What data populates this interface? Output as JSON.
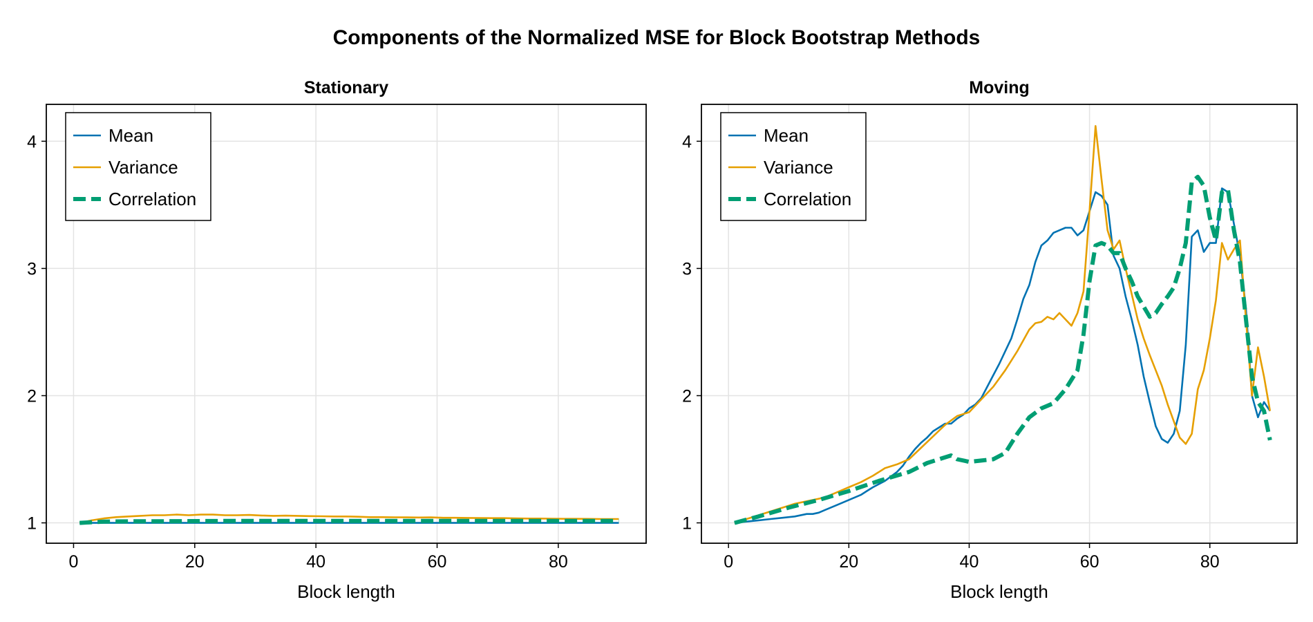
{
  "figure_title": "Components of the Normalized MSE for Block Bootstrap Methods",
  "colors": {
    "mean": "#0072b2",
    "variance": "#e69f00",
    "correlation": "#009e73",
    "grid": "#e3e3e3",
    "axis": "#000000"
  },
  "chart_data": [
    {
      "type": "line",
      "title": "Stationary",
      "xlabel": "Block length",
      "ylabel": "",
      "xlim": [
        -4.5,
        94.5
      ],
      "ylim": [
        0.84,
        4.29
      ],
      "xticks": [
        0,
        20,
        40,
        60,
        80
      ],
      "xtick_labels": [
        "0",
        "20",
        "40",
        "60",
        "80"
      ],
      "yticks": [
        1,
        2,
        3,
        4
      ],
      "ytick_labels": [
        "1",
        "2",
        "3",
        "4"
      ],
      "grid": true,
      "legend_position": "top-left",
      "legend": [
        "Mean",
        "Variance",
        "Correlation"
      ],
      "series": [
        {
          "name": "Mean",
          "x": [
            1,
            90
          ],
          "y": [
            1.0,
            1.0
          ]
        },
        {
          "name": "Variance",
          "x": [
            1,
            3,
            5,
            7,
            9,
            11,
            13,
            15,
            17,
            19,
            21,
            23,
            25,
            27,
            29,
            31,
            33,
            35,
            37,
            39,
            41,
            43,
            45,
            47,
            49,
            51,
            53,
            55,
            57,
            59,
            61,
            63,
            65,
            67,
            69,
            71,
            73,
            75,
            77,
            79,
            81,
            83,
            85,
            87,
            89,
            90
          ],
          "y": [
            1.0,
            1.02,
            1.035,
            1.045,
            1.05,
            1.055,
            1.06,
            1.06,
            1.065,
            1.06,
            1.065,
            1.065,
            1.06,
            1.06,
            1.062,
            1.058,
            1.055,
            1.057,
            1.055,
            1.053,
            1.052,
            1.05,
            1.05,
            1.048,
            1.045,
            1.045,
            1.044,
            1.043,
            1.042,
            1.043,
            1.04,
            1.04,
            1.039,
            1.038,
            1.037,
            1.037,
            1.035,
            1.034,
            1.034,
            1.033,
            1.032,
            1.032,
            1.031,
            1.03,
            1.03,
            1.03
          ]
        },
        {
          "name": "Correlation",
          "x": [
            1,
            5,
            10,
            15,
            20,
            25,
            30,
            35,
            40,
            45,
            50,
            55,
            60,
            65,
            70,
            75,
            80,
            85,
            90
          ],
          "y": [
            1.0,
            1.01,
            1.012,
            1.013,
            1.014,
            1.015,
            1.015,
            1.015,
            1.015,
            1.015,
            1.015,
            1.015,
            1.015,
            1.015,
            1.015,
            1.015,
            1.015,
            1.015,
            1.015
          ]
        }
      ]
    },
    {
      "type": "line",
      "title": "Moving",
      "xlabel": "Block length",
      "ylabel": "",
      "xlim": [
        -4.5,
        94.5
      ],
      "ylim": [
        0.84,
        4.29
      ],
      "xticks": [
        0,
        20,
        40,
        60,
        80
      ],
      "xtick_labels": [
        "0",
        "20",
        "40",
        "60",
        "80"
      ],
      "yticks": [
        1,
        2,
        3,
        4
      ],
      "ytick_labels": [
        "1",
        "2",
        "3",
        "4"
      ],
      "grid": true,
      "legend_position": "top-left",
      "legend": [
        "Mean",
        "Variance",
        "Correlation"
      ],
      "series": [
        {
          "name": "Mean",
          "x": [
            1,
            3,
            5,
            7,
            9,
            11,
            13,
            14,
            15,
            16,
            18,
            20,
            22,
            23,
            24,
            26,
            28,
            29,
            30,
            31,
            32,
            33,
            34,
            35,
            36,
            37,
            38,
            39,
            40,
            41,
            42,
            43,
            44,
            45,
            46,
            47,
            48,
            49,
            50,
            51,
            52,
            53,
            54,
            55,
            56,
            57,
            58,
            59,
            60,
            61,
            62,
            63,
            64,
            65,
            66,
            67,
            68,
            69,
            70,
            71,
            72,
            73,
            74,
            75,
            76,
            77,
            78,
            79,
            80,
            81,
            82,
            83,
            84,
            85,
            86,
            87,
            88,
            89,
            90
          ],
          "y": [
            1.0,
            1.01,
            1.02,
            1.03,
            1.04,
            1.05,
            1.07,
            1.07,
            1.08,
            1.1,
            1.14,
            1.18,
            1.22,
            1.25,
            1.28,
            1.33,
            1.4,
            1.45,
            1.52,
            1.58,
            1.63,
            1.67,
            1.72,
            1.75,
            1.78,
            1.78,
            1.82,
            1.85,
            1.9,
            1.93,
            1.98,
            2.07,
            2.16,
            2.25,
            2.35,
            2.45,
            2.6,
            2.76,
            2.87,
            3.05,
            3.18,
            3.22,
            3.28,
            3.3,
            3.32,
            3.32,
            3.26,
            3.3,
            3.45,
            3.6,
            3.57,
            3.5,
            3.1,
            3.0,
            2.78,
            2.6,
            2.4,
            2.15,
            1.95,
            1.76,
            1.66,
            1.63,
            1.7,
            1.88,
            2.4,
            3.25,
            3.3,
            3.13,
            3.2,
            3.2,
            3.63,
            3.6,
            3.35,
            3.1,
            2.68,
            2.0,
            1.83,
            1.95,
            1.88
          ]
        },
        {
          "name": "Variance",
          "x": [
            1,
            3,
            5,
            7,
            9,
            11,
            13,
            15,
            16,
            18,
            20,
            22,
            24,
            26,
            28,
            30,
            32,
            34,
            36,
            38,
            40,
            42,
            44,
            46,
            48,
            50,
            51,
            52,
            53,
            54,
            55,
            56,
            57,
            58,
            59,
            60,
            61,
            62,
            63,
            64,
            65,
            66,
            67,
            68,
            69,
            70,
            71,
            72,
            73,
            74,
            75,
            76,
            77,
            78,
            79,
            80,
            81,
            82,
            83,
            84,
            85,
            86,
            87,
            88,
            89,
            90
          ],
          "y": [
            1.0,
            1.03,
            1.06,
            1.09,
            1.12,
            1.15,
            1.17,
            1.19,
            1.2,
            1.24,
            1.28,
            1.32,
            1.37,
            1.43,
            1.46,
            1.5,
            1.59,
            1.68,
            1.77,
            1.84,
            1.87,
            1.97,
            2.07,
            2.2,
            2.35,
            2.52,
            2.57,
            2.58,
            2.62,
            2.6,
            2.65,
            2.6,
            2.55,
            2.65,
            2.82,
            3.45,
            4.12,
            3.7,
            3.3,
            3.15,
            3.22,
            3.0,
            2.8,
            2.6,
            2.45,
            2.32,
            2.2,
            2.08,
            1.93,
            1.8,
            1.67,
            1.62,
            1.7,
            2.05,
            2.2,
            2.45,
            2.75,
            3.2,
            3.07,
            3.15,
            3.22,
            2.6,
            2.0,
            2.38,
            2.15,
            1.88
          ]
        },
        {
          "name": "Correlation",
          "x": [
            1,
            5,
            10,
            15,
            20,
            25,
            30,
            33,
            35,
            37,
            38,
            40,
            42,
            44,
            46,
            48,
            50,
            52,
            54,
            56,
            58,
            59,
            60,
            61,
            62,
            63,
            64,
            65,
            66,
            67,
            68,
            69,
            70,
            71,
            72,
            73,
            74,
            75,
            76,
            77,
            78,
            79,
            80,
            81,
            82,
            83,
            84,
            85,
            86,
            87,
            88,
            89,
            90
          ],
          "y": [
            1.0,
            1.05,
            1.12,
            1.18,
            1.25,
            1.33,
            1.4,
            1.47,
            1.5,
            1.53,
            1.5,
            1.48,
            1.49,
            1.5,
            1.55,
            1.7,
            1.83,
            1.9,
            1.94,
            2.05,
            2.2,
            2.48,
            2.9,
            3.18,
            3.2,
            3.18,
            3.12,
            3.12,
            3.0,
            2.9,
            2.78,
            2.7,
            2.62,
            2.65,
            2.72,
            2.78,
            2.85,
            3.0,
            3.2,
            3.68,
            3.72,
            3.65,
            3.4,
            3.22,
            3.6,
            3.62,
            3.3,
            3.05,
            2.6,
            2.15,
            1.95,
            1.88,
            1.65
          ]
        }
      ]
    }
  ]
}
